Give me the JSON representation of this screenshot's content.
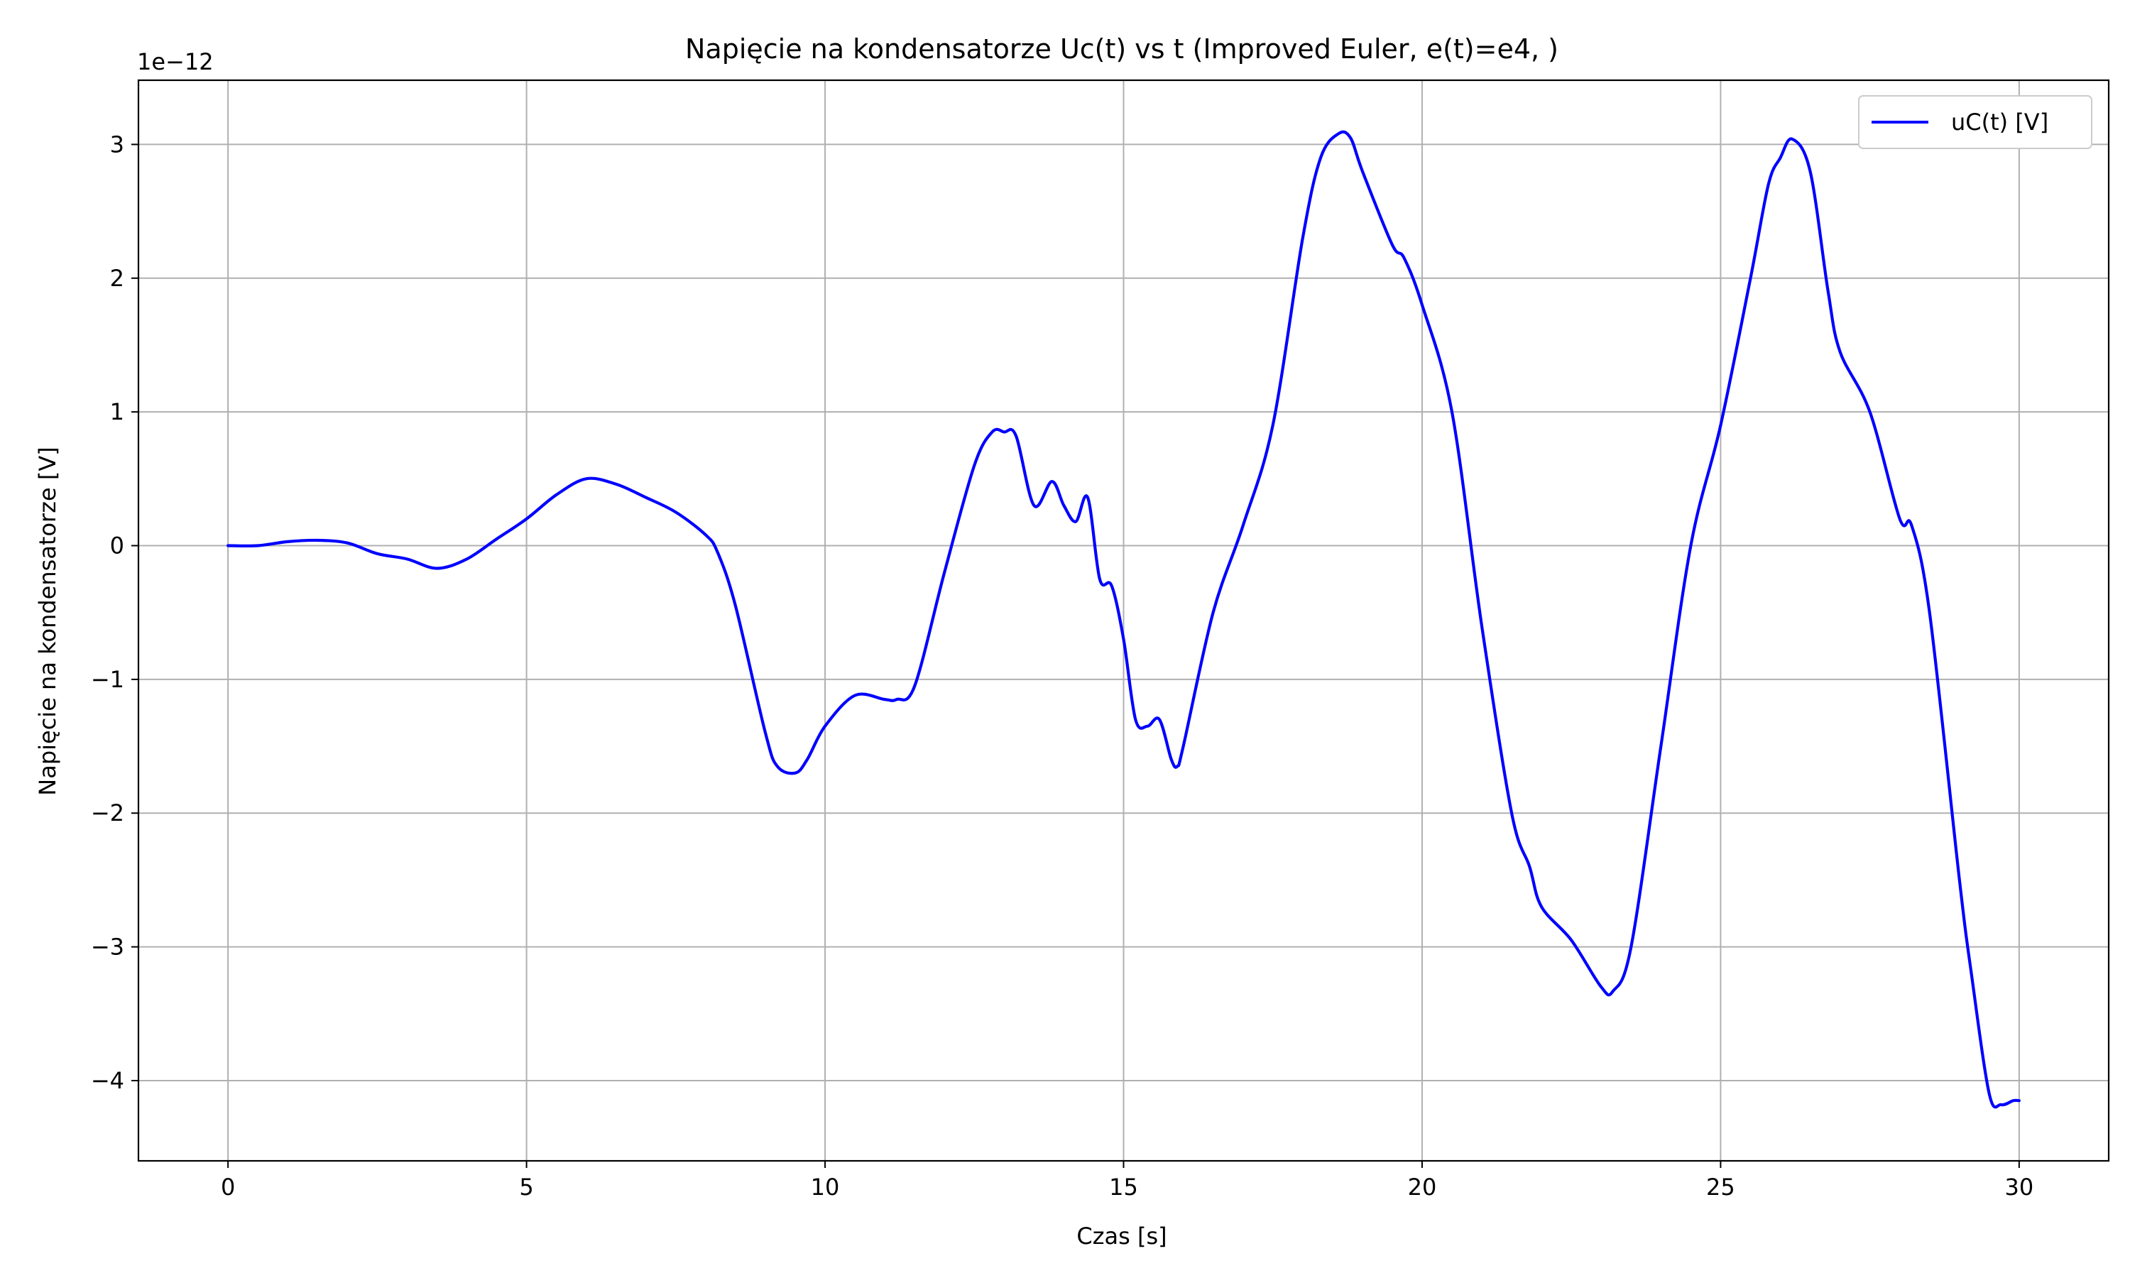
{
  "chart_data": {
    "type": "line",
    "title": "Napięcie na kondensatorze Uc(t) vs t (Improved Euler, e(t)=e4, )",
    "xlabel": "Czas [s]",
    "ylabel": "Napięcie na kondensatorze [V]",
    "y_offset_label": "1e−12",
    "xlim": [
      -1.5,
      31.5
    ],
    "ylim": [
      -4.6,
      3.48
    ],
    "xticks": [
      0,
      5,
      10,
      15,
      20,
      25,
      30
    ],
    "xtick_labels": [
      "0",
      "5",
      "10",
      "15",
      "20",
      "25",
      "30"
    ],
    "yticks": [
      3,
      2,
      1,
      0,
      -1,
      -2,
      -3,
      -4
    ],
    "ytick_labels": [
      "3",
      "2",
      "1",
      "0",
      "−1",
      "−2",
      "−3",
      "−4"
    ],
    "grid": true,
    "legend_position": "top-right",
    "series": [
      {
        "name": "uC(t) [V]",
        "color": "#0000ff",
        "x": [
          0,
          0.5,
          1.0,
          1.5,
          2.0,
          2.5,
          3.0,
          3.5,
          4.0,
          4.5,
          5.0,
          5.5,
          6.0,
          6.5,
          7.0,
          7.5,
          8.0,
          8.2,
          8.5,
          9.0,
          9.2,
          9.5,
          9.7,
          10.0,
          10.5,
          11.0,
          11.2,
          11.5,
          12.0,
          12.5,
          12.8,
          13.0,
          13.2,
          13.5,
          13.8,
          14.0,
          14.2,
          14.4,
          14.6,
          14.8,
          15.0,
          15.2,
          15.4,
          15.6,
          15.8,
          15.9,
          16.0,
          16.5,
          17.0,
          17.5,
          18.0,
          18.3,
          18.6,
          18.8,
          19.0,
          19.5,
          19.7,
          20.0,
          20.5,
          21.0,
          21.5,
          21.8,
          22.0,
          22.5,
          23.0,
          23.2,
          23.5,
          24.0,
          24.5,
          25.0,
          25.5,
          25.8,
          26.0,
          26.2,
          26.5,
          26.8,
          27.0,
          27.5,
          28.0,
          28.2,
          28.5,
          29.0,
          29.2,
          29.5,
          29.7,
          29.9,
          30.0
        ],
        "y": [
          0,
          0,
          0.03,
          0.04,
          0.02,
          -0.06,
          -0.1,
          -0.17,
          -0.1,
          0.05,
          0.2,
          0.38,
          0.5,
          0.46,
          0.36,
          0.25,
          0.08,
          -0.05,
          -0.45,
          -1.4,
          -1.65,
          -1.7,
          -1.6,
          -1.35,
          -1.12,
          -1.15,
          -1.15,
          -1.05,
          -0.2,
          0.6,
          0.85,
          0.85,
          0.82,
          0.3,
          0.48,
          0.3,
          0.18,
          0.36,
          -0.25,
          -0.3,
          -0.7,
          -1.3,
          -1.35,
          -1.3,
          -1.6,
          -1.65,
          -1.5,
          -0.5,
          0.15,
          0.9,
          2.3,
          2.9,
          3.08,
          3.05,
          2.8,
          2.25,
          2.15,
          1.8,
          1.0,
          -0.6,
          -2.0,
          -2.4,
          -2.7,
          -2.95,
          -3.3,
          -3.33,
          -3.0,
          -1.5,
          0.0,
          0.9,
          2.0,
          2.7,
          2.9,
          3.04,
          2.8,
          1.9,
          1.45,
          1.0,
          0.2,
          0.15,
          -0.5,
          -2.5,
          -3.2,
          -4.1,
          -4.18,
          -4.15,
          -4.15
        ]
      }
    ]
  }
}
